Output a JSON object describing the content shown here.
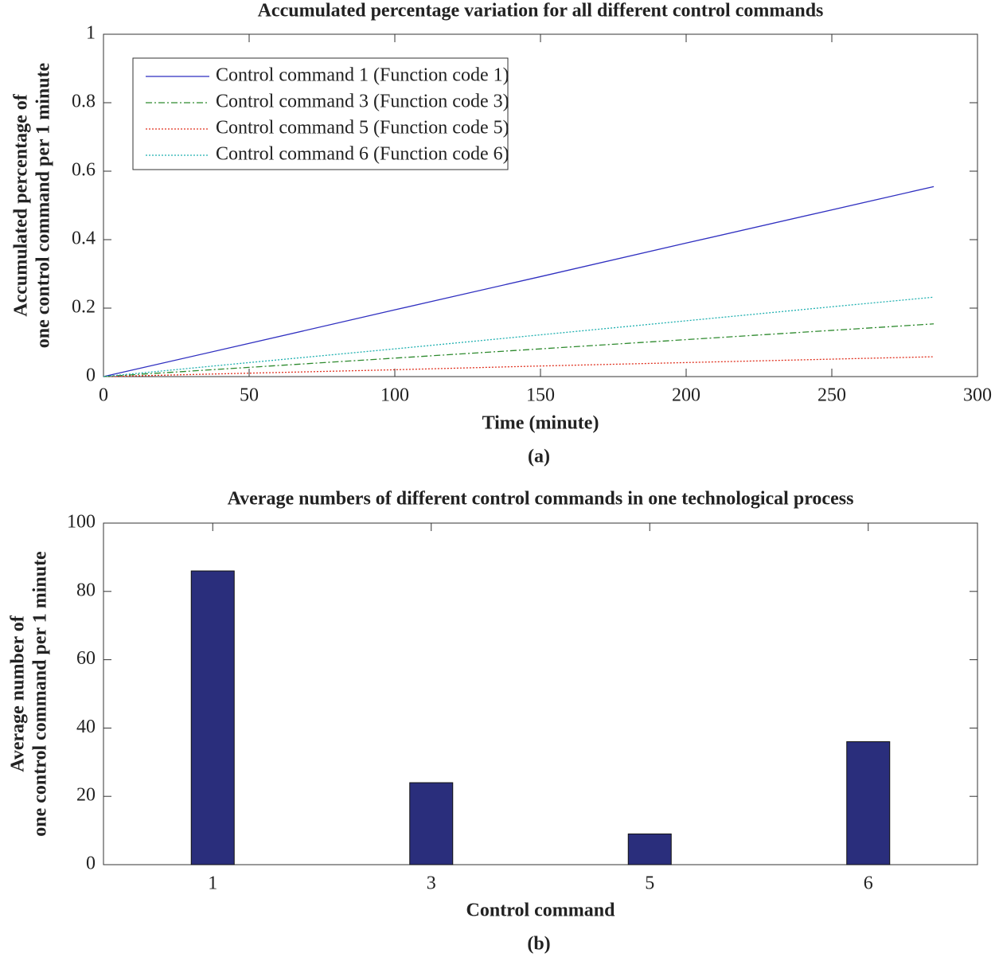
{
  "chart_data": [
    {
      "type": "line",
      "title": "Accumulated percentage variation for all different control commands",
      "xlabel": "Time (minute)",
      "ylabel": [
        "Accumulated percentage of",
        "one control command per 1 minute"
      ],
      "caption": "(a)",
      "x": [
        0,
        50,
        100,
        150,
        200,
        250,
        285
      ],
      "series": [
        {
          "name": "Control command 1 (Function code 1)",
          "color": "#2f2fc0",
          "linestyle": "-",
          "values": [
            0,
            0.097,
            0.195,
            0.292,
            0.39,
            0.487,
            0.555
          ]
        },
        {
          "name": "Control command 3 (Function code 3)",
          "color": "#2e8a2e",
          "linestyle": "-.",
          "values": [
            0,
            0.027,
            0.054,
            0.081,
            0.108,
            0.135,
            0.154
          ]
        },
        {
          "name": "Control command 5 (Function code 5)",
          "color": "#e0301e",
          "linestyle": ":",
          "values": [
            0,
            0.01,
            0.02,
            0.031,
            0.041,
            0.051,
            0.058
          ]
        },
        {
          "name": "Control command 6 (Function code 6)",
          "color": "#1fb0b0",
          "linestyle": ":",
          "values": [
            0,
            0.041,
            0.081,
            0.122,
            0.163,
            0.204,
            0.232
          ]
        }
      ],
      "xlim": [
        0,
        300
      ],
      "xticks": [
        0,
        50,
        100,
        150,
        200,
        250,
        300
      ],
      "ylim": [
        0,
        1
      ],
      "yticks": [
        0,
        0.2,
        0.4,
        0.6,
        0.8,
        1
      ],
      "legend": "upper left"
    },
    {
      "type": "bar",
      "title": "Average numbers of different control commands in one technological process",
      "xlabel": "Control command",
      "ylabel": [
        "Average number of",
        "one control command per 1 minute"
      ],
      "caption": "(b)",
      "categories": [
        "1",
        "3",
        "5",
        "6"
      ],
      "values": [
        86,
        24,
        9,
        36
      ],
      "color": "#2a2e7c",
      "ylim": [
        0,
        100
      ],
      "yticks": [
        0,
        20,
        40,
        60,
        80,
        100
      ]
    }
  ]
}
